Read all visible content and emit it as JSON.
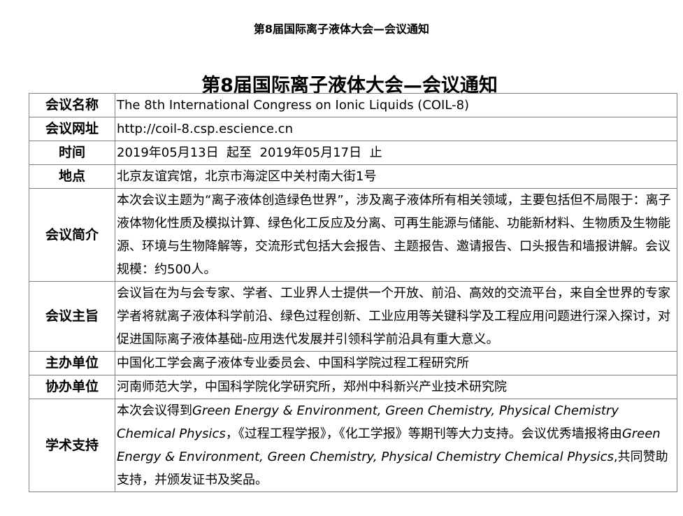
{
  "page_title": "第8届国际离子液体大会—会议通知",
  "heading": "第8届国际离子液体大会—会议通知",
  "rows": [
    {
      "label": "会议名称",
      "value": "The 8th International Congress on Ionic Liquids (COIL-8)"
    },
    {
      "label": "会议网址",
      "value": "http://coil-8.csp.escience.cn"
    },
    {
      "label": "时间",
      "value": "2019年05月13日  起至  2019年05月17日  止"
    },
    {
      "label": "地点",
      "value": "北京友谊宾馆，北京市海淀区中关村南大街1号"
    },
    {
      "label": "会议简介",
      "value": "本次会议主题为“离子液体创造绿色世界”，涉及离子液体所有相关领域，主要包括但不局限于：离子液体物化性质及模拟计算、绿色化工反应及分离、可再生能源与储能、功能新材料、生物质及生物能源、环境与生物降解等，交流形式包括大会报告、主题报告、邀请报告、口头报告和墙报讲解。会议规模：约500人。"
    },
    {
      "label": "会议主旨",
      "value": "会议旨在为与会专家、学者、工业界人士提供一个开放、前沿、高效的交流平台，来自全世界的专家学者将就离子液体科学前沿、绿色过程创新、工业应用等关键科学及工程应用问题进行深入探讨，对促进国际离子液体基础-应用迭代发展并引领科学前沿具有重大意义。"
    },
    {
      "label": "主办单位",
      "value": "中国化工学会离子液体专业委员会、中国科学院过程工程研究所"
    },
    {
      "label": "协办单位",
      "value": "河南师范大学，中国科学院化学研究所，郑州中科新兴产业技术研究院"
    }
  ],
  "support": {
    "label": "学术支持",
    "p1": "本次会议得到",
    "j1": "Green Energy & Environment, Green Chemistry, Physical Chemistry Chemical Physics",
    "p2": "，《过程工程学报》，《化工学报》等期刊等大力支持。会议优秀墙报将由",
    "j2": "Green Energy & Environment, Green Chemistry, Physical Chemistry Chemical Physics",
    "p3": ",共同赞助支持，并颁发证书及奖品。"
  }
}
